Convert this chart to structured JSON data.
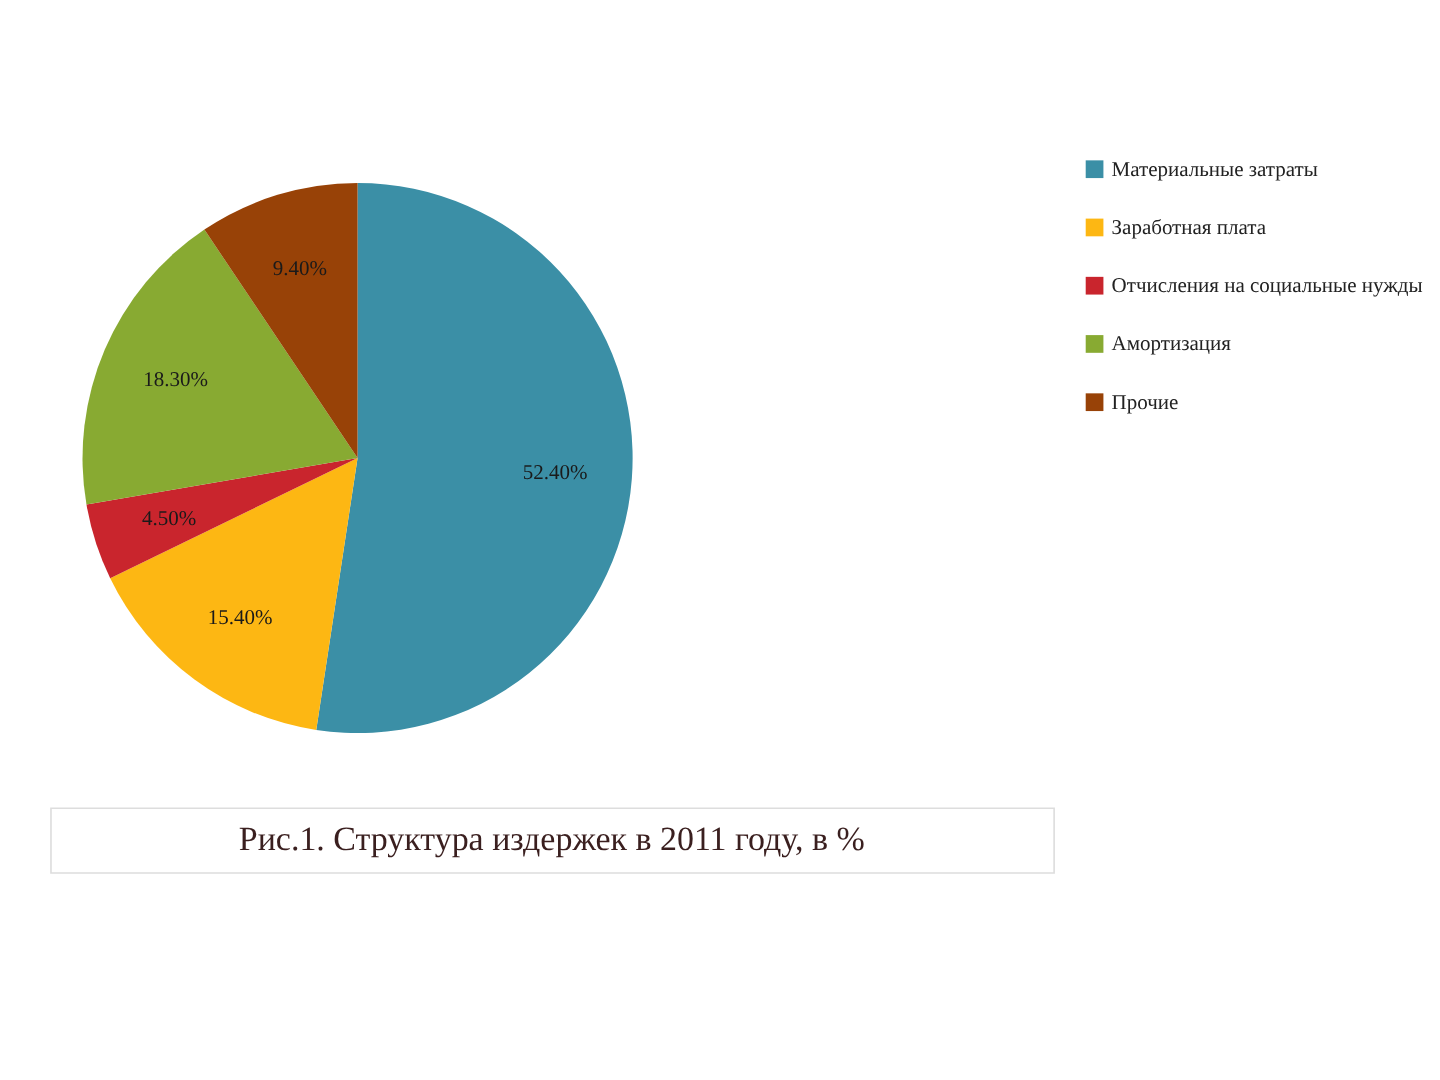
{
  "chart_data": {
    "type": "pie",
    "categories": [
      "Материальные затраты",
      "Заработная плата",
      "Отчисления на социальные нужды",
      "Амортизация",
      "Прочие"
    ],
    "values": [
      52.4,
      15.4,
      4.5,
      18.3,
      9.4
    ],
    "value_labels": [
      "52.40%",
      "15.40%",
      "4.50%",
      "18.30%",
      "9.40%"
    ],
    "colors": [
      "#3b8fa6",
      "#fdb713",
      "#c9252d",
      "#88aa32",
      "#984207"
    ],
    "legend": "right",
    "annotations": [
      "Рис.1. Структура издержек в 2011 году, в %"
    ]
  }
}
